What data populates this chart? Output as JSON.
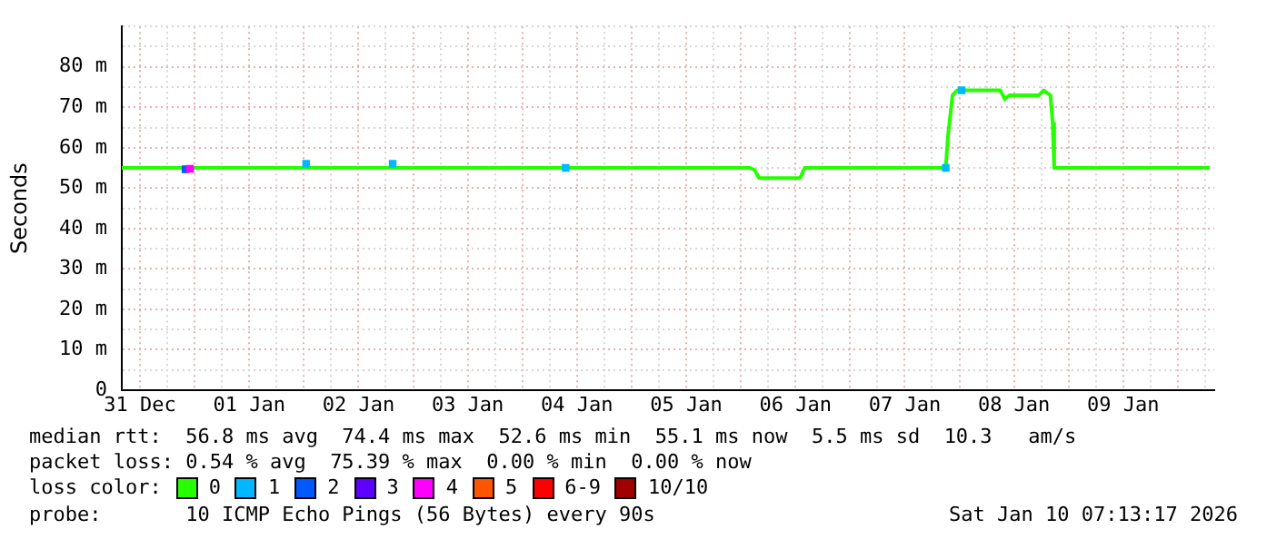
{
  "chart_data": {
    "type": "line",
    "ylabel": "Seconds",
    "legend_title": "loss color:",
    "legend": "bottom",
    "grid": true,
    "xlim": [
      "2025-12-31T08:00",
      "2026-01-10T08:00"
    ],
    "xticks": [
      {
        "value": "2025-12-31T12:00",
        "label": "31 Dec"
      },
      {
        "value": "2025-12-31T18:00",
        "label": null
      },
      {
        "value": "2026-01-01T00:00",
        "label": null
      },
      {
        "value": "2026-01-01T06:00",
        "label": null
      },
      {
        "value": "2026-01-01T12:00",
        "label": "01 Jan"
      },
      {
        "value": "2026-01-01T18:00",
        "label": null
      },
      {
        "value": "2026-01-02T00:00",
        "label": null
      },
      {
        "value": "2026-01-02T06:00",
        "label": null
      },
      {
        "value": "2026-01-02T12:00",
        "label": "02 Jan"
      },
      {
        "value": "2026-01-02T18:00",
        "label": null
      },
      {
        "value": "2026-01-03T00:00",
        "label": null
      },
      {
        "value": "2026-01-03T06:00",
        "label": null
      },
      {
        "value": "2026-01-03T12:00",
        "label": "03 Jan"
      },
      {
        "value": "2026-01-03T18:00",
        "label": null
      },
      {
        "value": "2026-01-04T00:00",
        "label": null
      },
      {
        "value": "2026-01-04T06:00",
        "label": null
      },
      {
        "value": "2026-01-04T12:00",
        "label": "04 Jan"
      },
      {
        "value": "2026-01-04T18:00",
        "label": null
      },
      {
        "value": "2026-01-05T00:00",
        "label": null
      },
      {
        "value": "2026-01-05T06:00",
        "label": null
      },
      {
        "value": "2026-01-05T12:00",
        "label": "05 Jan"
      },
      {
        "value": "2026-01-05T18:00",
        "label": null
      },
      {
        "value": "2026-01-06T00:00",
        "label": null
      },
      {
        "value": "2026-01-06T06:00",
        "label": null
      },
      {
        "value": "2026-01-06T12:00",
        "label": "06 Jan"
      },
      {
        "value": "2026-01-06T18:00",
        "label": null
      },
      {
        "value": "2026-01-07T00:00",
        "label": null
      },
      {
        "value": "2026-01-07T06:00",
        "label": null
      },
      {
        "value": "2026-01-07T12:00",
        "label": "07 Jan"
      },
      {
        "value": "2026-01-07T18:00",
        "label": null
      },
      {
        "value": "2026-01-08T00:00",
        "label": null
      },
      {
        "value": "2026-01-08T06:00",
        "label": null
      },
      {
        "value": "2026-01-08T12:00",
        "label": "08 Jan"
      },
      {
        "value": "2026-01-08T18:00",
        "label": null
      },
      {
        "value": "2026-01-09T00:00",
        "label": null
      },
      {
        "value": "2026-01-09T06:00",
        "label": null
      },
      {
        "value": "2026-01-09T12:00",
        "label": "09 Jan"
      },
      {
        "value": "2026-01-09T18:00",
        "label": null
      },
      {
        "value": "2026-01-10T00:00",
        "label": null
      },
      {
        "value": "2026-01-10T06:00",
        "label": null
      }
    ],
    "ylim": [
      0,
      90
    ],
    "yticks": [
      0,
      {
        "value": 5,
        "label": null
      },
      {
        "value": 10,
        "label": "10 m"
      },
      {
        "value": 15,
        "label": null
      },
      {
        "value": 20,
        "label": "20 m"
      },
      {
        "value": 25,
        "label": null
      },
      {
        "value": 30,
        "label": "30 m"
      },
      {
        "value": 35,
        "label": null
      },
      {
        "value": 40,
        "label": "40 m"
      },
      {
        "value": 45,
        "label": null
      },
      {
        "value": 50,
        "label": "50 m"
      },
      {
        "value": 55,
        "label": null
      },
      {
        "value": 60,
        "label": "60 m"
      },
      {
        "value": 65,
        "label": null
      },
      {
        "value": 70,
        "label": "70 m"
      },
      {
        "value": 75,
        "label": null
      },
      {
        "value": 80,
        "label": "80 m"
      },
      {
        "value": 85,
        "label": null
      },
      {
        "value": 90,
        "label": null
      }
    ],
    "series": [
      {
        "name": "0",
        "color": "#26ff00",
        "x": [
          "2025-12-31T08:00",
          "2025-12-31T20:00",
          "2026-01-01T12:00",
          "2026-01-02T12:00",
          "2026-01-03T12:00",
          "2026-01-04T12:00",
          "2026-01-05T12:00",
          "2026-01-06T02:00",
          "2026-01-06T03:00",
          "2026-01-06T04:00",
          "2026-01-06T13:00",
          "2026-01-06T14:00",
          "2026-01-07T12:00",
          "2026-01-07T21:00",
          "2026-01-07T21:30",
          "2026-01-07T22:30",
          "2026-01-07T23:30",
          "2026-01-08T09:00",
          "2026-01-08T10:00",
          "2026-01-08T11:00",
          "2026-01-08T17:30",
          "2026-01-08T18:30",
          "2026-01-08T20:00",
          "2026-01-08T20:30",
          "2026-01-08T20:50",
          "2026-01-09T12:00",
          "2026-01-10T07:00"
        ],
        "values": [
          55,
          55,
          55,
          55,
          55,
          55,
          55,
          55,
          54.5,
          52.5,
          52.5,
          55,
          55,
          55,
          63,
          73,
          74.2,
          74.2,
          72,
          73,
          73,
          74.2,
          73,
          66,
          55,
          55,
          55
        ]
      },
      {
        "name": "1",
        "color": "#00b8ff",
        "type": "scatter",
        "marker": "square",
        "x": [
          "2026-01-02T00:30",
          "2026-01-02T19:30",
          "2026-01-04T09:30",
          "2026-01-07T21:00",
          "2026-01-08T00:30"
        ],
        "values": [
          56,
          56,
          55,
          55,
          74.2
        ]
      },
      {
        "name": "2",
        "color": "#0059ff",
        "type": "scatter",
        "marker": "square",
        "x": [
          "2025-12-31T22:00"
        ],
        "values": [
          54.7
        ]
      },
      {
        "name": "3",
        "color": "#5e00ff",
        "type": "scatter",
        "marker": "square"
      },
      {
        "name": "4",
        "color": "#ff00ff",
        "type": "scatter",
        "marker": "square",
        "x": [
          "2025-12-31T23:00"
        ],
        "values": [
          54.8
        ]
      },
      {
        "name": "5",
        "color": "#ff5500",
        "type": "scatter",
        "marker": "square"
      },
      {
        "name": "6-9",
        "color": "#ff0000",
        "type": "scatter",
        "marker": "square"
      },
      {
        "name": "10/10",
        "color": "#a10000",
        "type": "scatter",
        "marker": "square"
      }
    ],
    "annotations": [
      "median rtt:  56.8 ms avg  74.4 ms max  52.6 ms min  55.1 ms now  5.5 ms sd  10.3   am/s",
      "packet loss: 0.54 % avg  75.39 % max  0.00 % min  0.00 % now",
      "probe:       10 ICMP Echo Pings (56 Bytes) every 90s",
      "Sat Jan 10 07:13:17 2026"
    ]
  }
}
